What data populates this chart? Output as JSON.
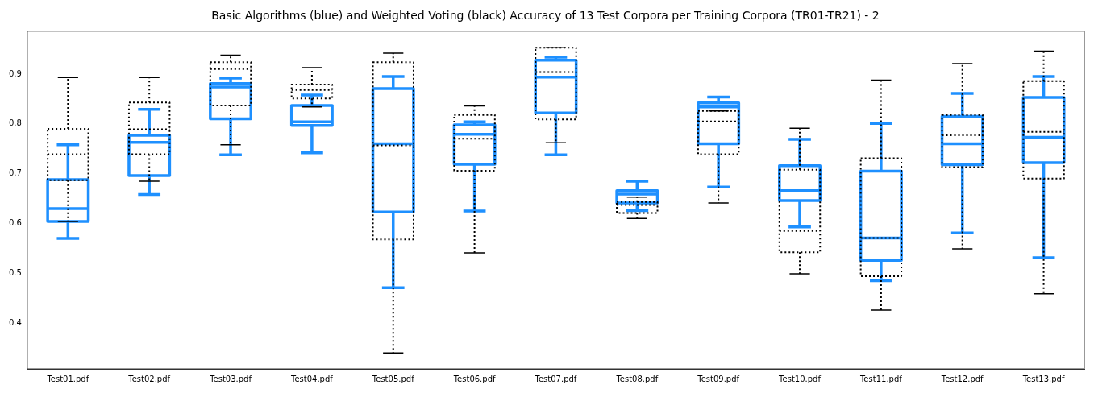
{
  "chart_data": {
    "type": "box",
    "title": "Basic Algorithms (blue) and Weighted Voting (black) Accuracy of 13 Test Corpora per Training Corpora (TR01-TR21) - 2",
    "categories": [
      "Test01.pdf",
      "Test02.pdf",
      "Test03.pdf",
      "Test04.pdf",
      "Test05.pdf",
      "Test06.pdf",
      "Test07.pdf",
      "Test08.pdf",
      "Test09.pdf",
      "Test10.pdf",
      "Test11.pdf",
      "Test12.pdf",
      "Test13.pdf"
    ],
    "ylim": [
      0.308,
      0.986
    ],
    "yticks": [
      0.4,
      0.5,
      0.6,
      0.7,
      0.8,
      0.9
    ],
    "grid": false,
    "legend": false,
    "series": [
      {
        "color": "#1e90ff",
        "line_style": "solid",
        "boxes": [
          {
            "low": 0.57,
            "q1": 0.604,
            "median": 0.63,
            "q3": 0.688,
            "high": 0.758
          },
          {
            "low": 0.658,
            "q1": 0.696,
            "median": 0.763,
            "q3": 0.777,
            "high": 0.829
          },
          {
            "low": 0.738,
            "q1": 0.81,
            "median": 0.874,
            "q3": 0.881,
            "high": 0.892
          },
          {
            "low": 0.742,
            "q1": 0.797,
            "median": 0.804,
            "q3": 0.837,
            "high": 0.858
          },
          {
            "low": 0.471,
            "q1": 0.623,
            "median": 0.76,
            "q3": 0.871,
            "high": 0.895
          },
          {
            "low": 0.625,
            "q1": 0.719,
            "median": 0.779,
            "q3": 0.798,
            "high": 0.804
          },
          {
            "low": 0.738,
            "q1": 0.822,
            "median": 0.894,
            "q3": 0.928,
            "high": 0.934
          },
          {
            "low": 0.626,
            "q1": 0.641,
            "median": 0.659,
            "q3": 0.666,
            "high": 0.685
          },
          {
            "low": 0.673,
            "q1": 0.76,
            "median": 0.834,
            "q3": 0.842,
            "high": 0.854
          },
          {
            "low": 0.593,
            "q1": 0.646,
            "median": 0.666,
            "q3": 0.716,
            "high": 0.769
          },
          {
            "low": 0.485,
            "q1": 0.526,
            "median": 0.571,
            "q3": 0.705,
            "high": 0.801
          },
          {
            "low": 0.581,
            "q1": 0.718,
            "median": 0.76,
            "q3": 0.815,
            "high": 0.861
          },
          {
            "low": 0.531,
            "q1": 0.722,
            "median": 0.773,
            "q3": 0.853,
            "high": 0.895
          }
        ]
      },
      {
        "color": "#000000",
        "line_style": "dotted",
        "boxes": [
          {
            "low": 0.604,
            "q1": 0.687,
            "median": 0.739,
            "q3": 0.79,
            "high": 0.893
          },
          {
            "low": 0.685,
            "q1": 0.739,
            "median": 0.789,
            "q3": 0.843,
            "high": 0.893
          },
          {
            "low": 0.758,
            "q1": 0.837,
            "median": 0.91,
            "q3": 0.924,
            "high": 0.938
          },
          {
            "low": 0.834,
            "q1": 0.851,
            "median": 0.868,
            "q3": 0.879,
            "high": 0.913
          },
          {
            "low": 0.34,
            "q1": 0.568,
            "median": 0.757,
            "q3": 0.924,
            "high": 0.942
          },
          {
            "low": 0.541,
            "q1": 0.706,
            "median": 0.77,
            "q3": 0.818,
            "high": 0.836
          },
          {
            "low": 0.762,
            "q1": 0.809,
            "median": 0.904,
            "q3": 0.953,
            "high": 0.953
          },
          {
            "low": 0.61,
            "q1": 0.621,
            "median": 0.637,
            "q3": 0.643,
            "high": 0.653
          },
          {
            "low": 0.641,
            "q1": 0.739,
            "median": 0.805,
            "q3": 0.826,
            "high": 0.826
          },
          {
            "low": 0.499,
            "q1": 0.542,
            "median": 0.585,
            "q3": 0.708,
            "high": 0.791
          },
          {
            "low": 0.426,
            "q1": 0.494,
            "median": 0.571,
            "q3": 0.731,
            "high": 0.888
          },
          {
            "low": 0.549,
            "q1": 0.713,
            "median": 0.777,
            "q3": 0.818,
            "high": 0.921
          },
          {
            "low": 0.459,
            "q1": 0.69,
            "median": 0.784,
            "q3": 0.886,
            "high": 0.946
          }
        ]
      }
    ]
  }
}
